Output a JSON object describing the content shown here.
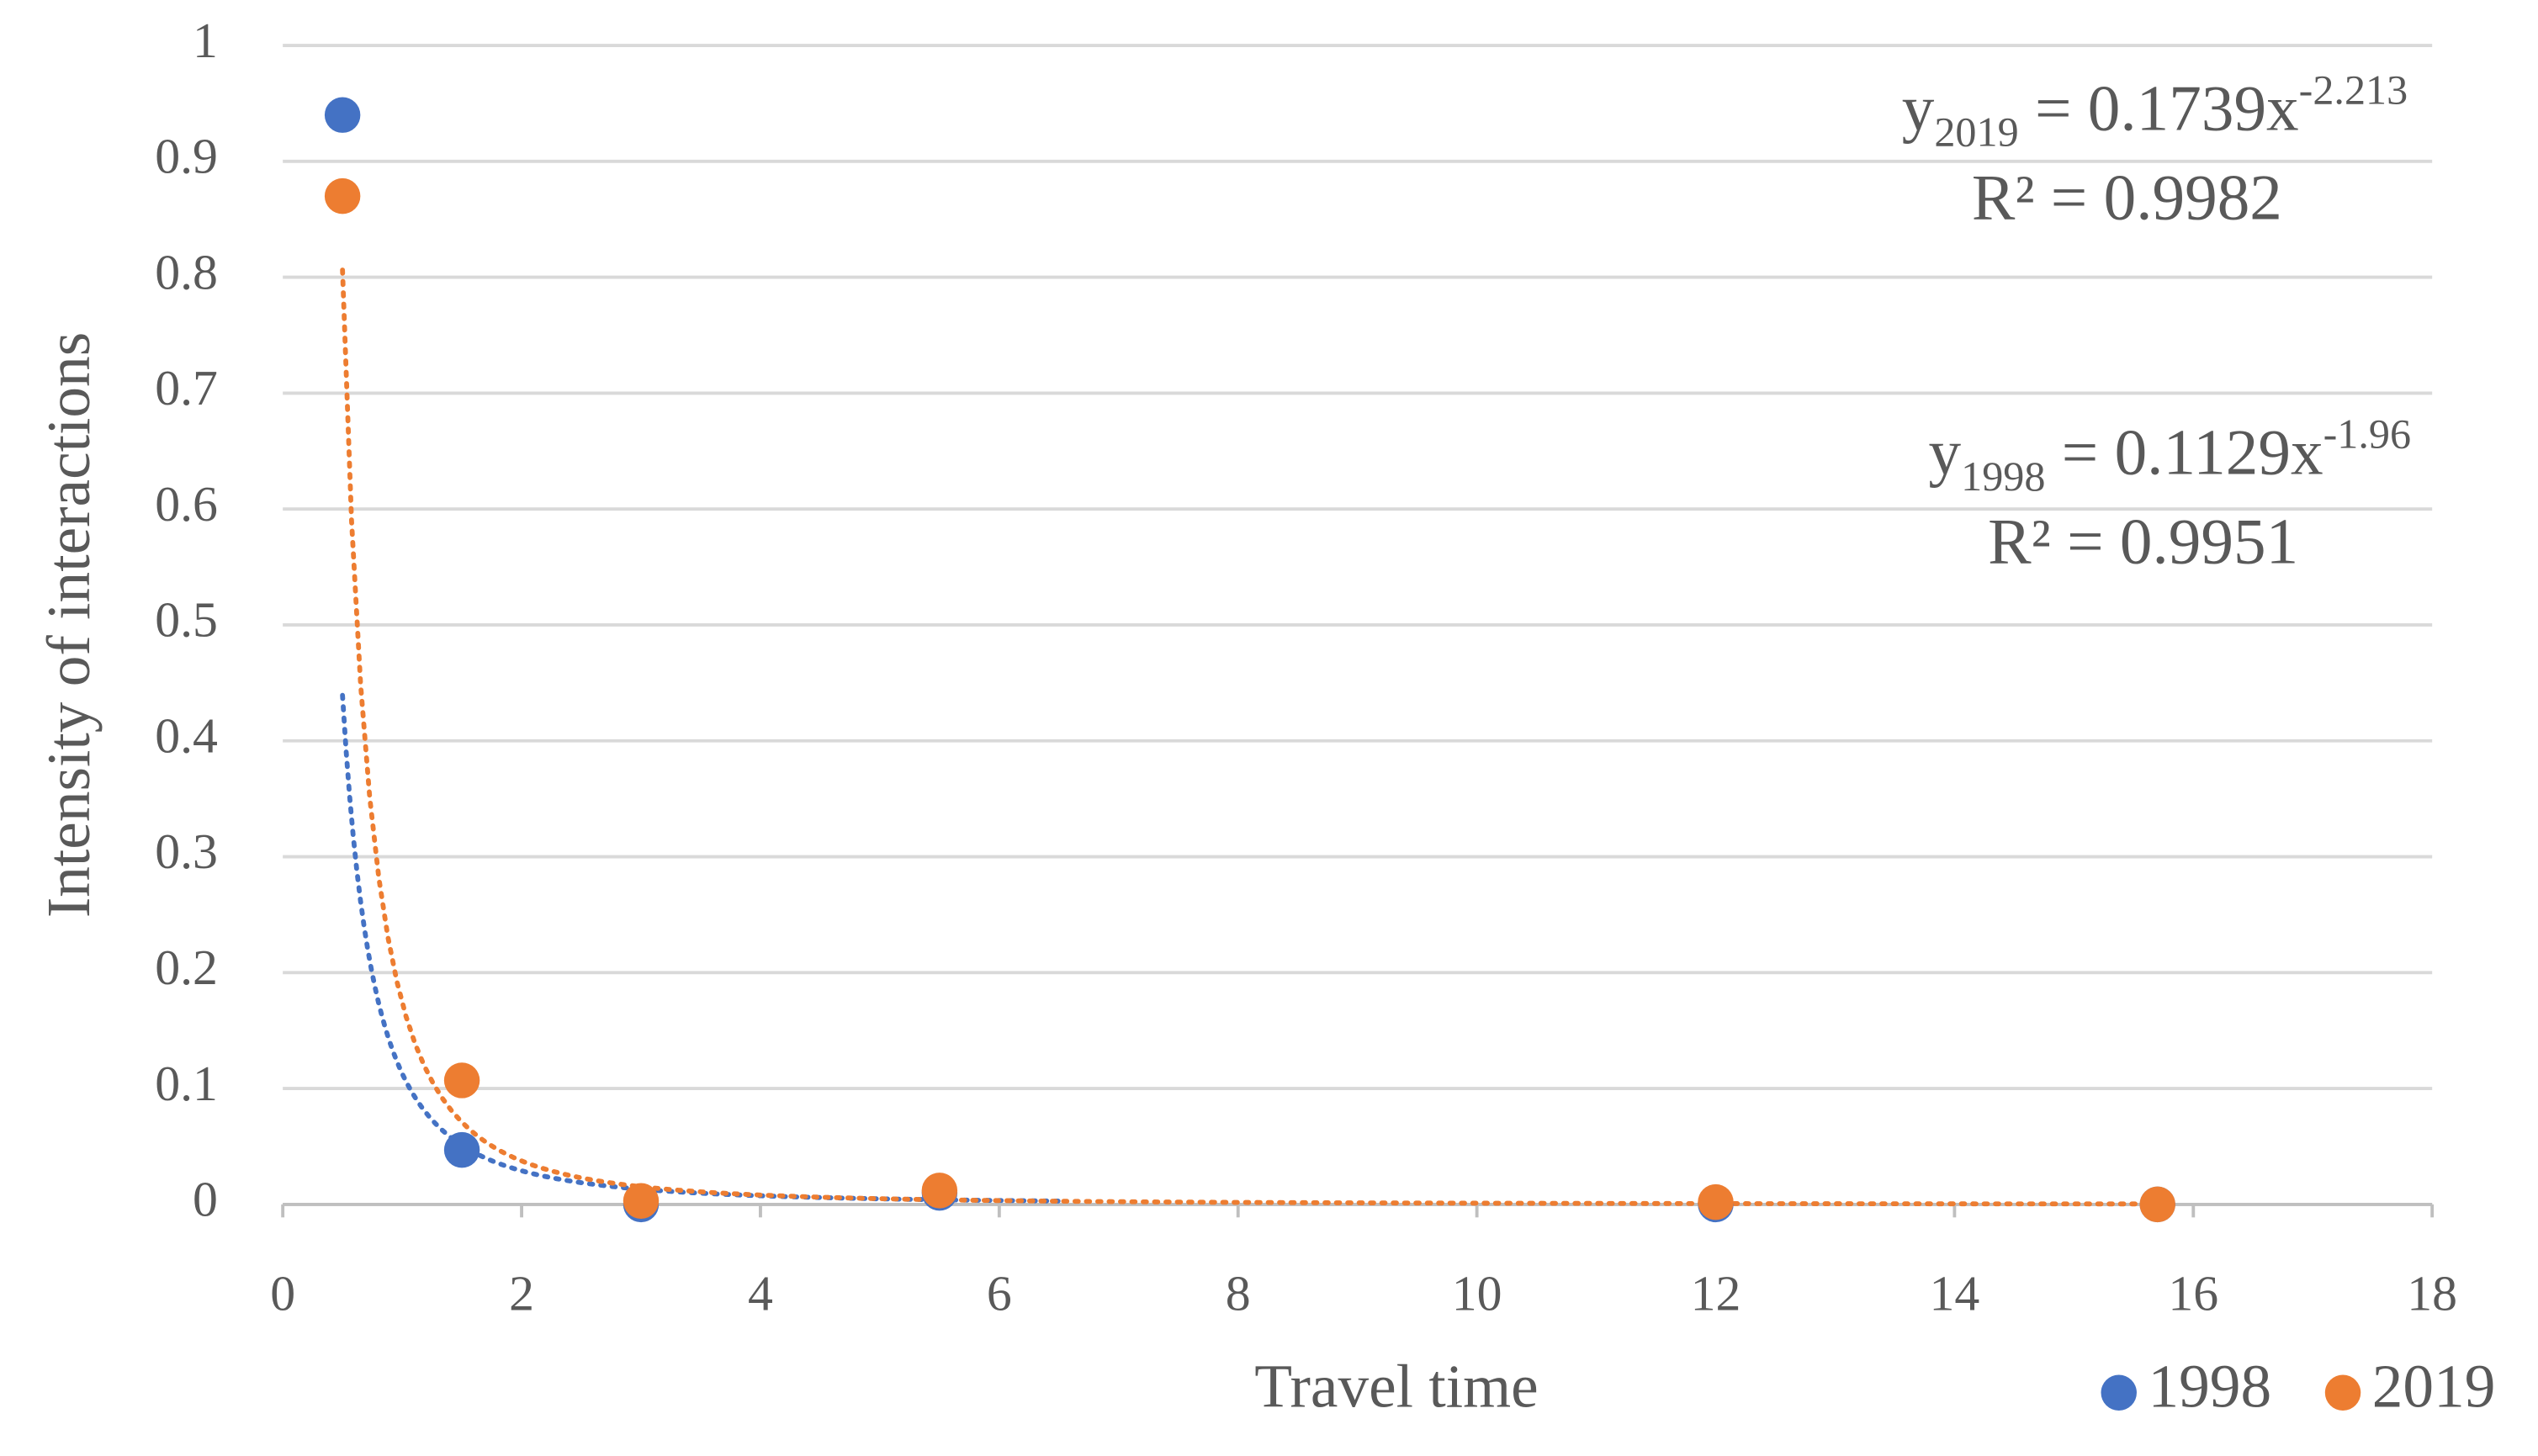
{
  "chart_data": {
    "type": "scatter",
    "x_label": "Travel time",
    "y_label": "Intensity of interactions",
    "xlim": [
      0,
      18
    ],
    "xticks": [
      0,
      2,
      4,
      6,
      8,
      10,
      12,
      14,
      16,
      18
    ],
    "ylim": [
      0,
      1
    ],
    "yticks": [
      0,
      0.1,
      0.2,
      0.3,
      0.4,
      0.5,
      0.6,
      0.7,
      0.8,
      0.9,
      1
    ],
    "grid": true,
    "legend": "bottom-right",
    "series": [
      {
        "name": "1998",
        "color": "#4472c4",
        "x": [
          0.5,
          1.5,
          3,
          5.5,
          12,
          15.7
        ],
        "values": [
          0.94,
          0.047,
          0.0,
          0.01,
          0.0,
          0.0
        ],
        "trendline": {
          "coefficient": 0.1129,
          "exponent": -1.96,
          "r_squared": 0.9951,
          "x_range": [
            0.5,
            6.5
          ]
        }
      },
      {
        "name": "2019",
        "color": "#ed7d31",
        "x": [
          0.5,
          1.5,
          3,
          5.5,
          12,
          15.7
        ],
        "values": [
          0.87,
          0.107,
          0.003,
          0.012,
          0.002,
          0.0
        ],
        "trendline": {
          "coefficient": 0.1739,
          "exponent": -2.213,
          "r_squared": 0.9982,
          "x_range": [
            0.5,
            15.7
          ]
        }
      }
    ],
    "trendline_text": {
      "y": "y",
      "equals": " = ",
      "x": "x",
      "r_squared": "R² = "
    }
  }
}
